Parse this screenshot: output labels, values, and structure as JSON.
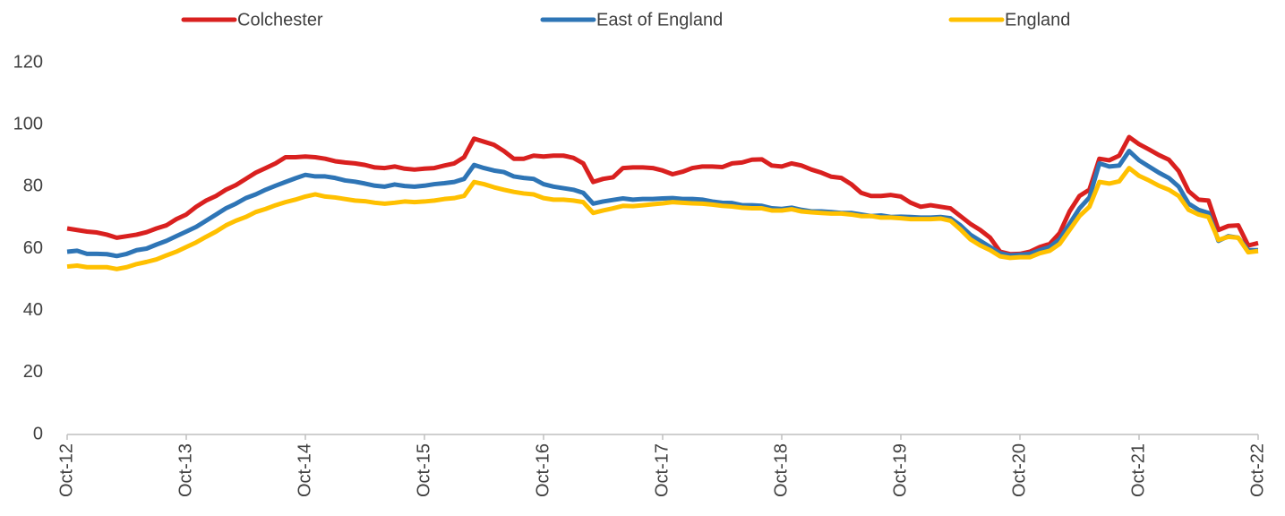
{
  "chart_data": {
    "type": "line",
    "categories": [
      "Oct-12",
      null,
      null,
      null,
      null,
      null,
      null,
      null,
      null,
      null,
      null,
      null,
      "Oct-13",
      null,
      null,
      null,
      null,
      null,
      null,
      null,
      null,
      null,
      null,
      null,
      "Oct-14",
      null,
      null,
      null,
      null,
      null,
      null,
      null,
      null,
      null,
      null,
      null,
      "Oct-15",
      null,
      null,
      null,
      null,
      null,
      null,
      null,
      null,
      null,
      null,
      null,
      "Oct-16",
      null,
      null,
      null,
      null,
      null,
      null,
      null,
      null,
      null,
      null,
      null,
      "Oct-17",
      null,
      null,
      null,
      null,
      null,
      null,
      null,
      null,
      null,
      null,
      null,
      "Oct-18",
      null,
      null,
      null,
      null,
      null,
      null,
      null,
      null,
      null,
      null,
      null,
      "Oct-19",
      null,
      null,
      null,
      null,
      null,
      null,
      null,
      null,
      null,
      null,
      null,
      "Oct-20",
      null,
      null,
      null,
      null,
      null,
      null,
      null,
      null,
      null,
      null,
      null,
      "Oct-21",
      null,
      null,
      null,
      null,
      null,
      null,
      null,
      null,
      null,
      null,
      null,
      "Oct-22"
    ],
    "series": [
      {
        "name": "Colchester",
        "color": "#d9201f",
        "values": [
          66.5,
          66,
          65.5,
          65.2,
          64.5,
          63.5,
          64,
          64.5,
          65.3,
          66.5,
          67.5,
          69.5,
          71,
          73.5,
          75.5,
          77,
          79,
          80.5,
          82.5,
          84.5,
          86,
          87.5,
          89.5,
          89.5,
          89.7,
          89.5,
          89,
          88.2,
          87.8,
          87.5,
          87,
          86.2,
          86,
          86.5,
          85.8,
          85.5,
          85.8,
          86,
          86.8,
          87.5,
          89.5,
          95.5,
          94.5,
          93.5,
          91.5,
          89,
          89,
          90,
          89.7,
          90,
          90,
          89.3,
          87.5,
          81.5,
          82.5,
          83,
          86,
          86.2,
          86.2,
          86,
          85.2,
          84,
          84.8,
          86,
          86.5,
          86.5,
          86.3,
          87.5,
          87.8,
          88.7,
          88.8,
          86.8,
          86.5,
          87.5,
          86.8,
          85.5,
          84.5,
          83.2,
          82.8,
          80.8,
          78,
          77,
          77,
          77.3,
          76.8,
          74.8,
          73.5,
          74,
          73.5,
          73,
          70.5,
          68,
          66,
          63.5,
          59,
          58.2,
          58.3,
          59,
          60.5,
          61.5,
          65,
          72,
          77,
          79,
          89,
          88.5,
          90,
          96,
          93.7,
          92,
          90.2,
          88.7,
          85,
          78.5,
          75.8,
          75.5,
          66,
          67.3,
          67.5,
          61,
          61.8
        ]
      },
      {
        "name": "East of England",
        "color": "#2e75b6",
        "values": [
          59,
          59.3,
          58.3,
          58.3,
          58.2,
          57.6,
          58.3,
          59.5,
          60,
          61.3,
          62.5,
          64,
          65.5,
          67,
          69,
          71,
          73,
          74.5,
          76.3,
          77.5,
          79,
          80.3,
          81.5,
          82.7,
          83.8,
          83.3,
          83.3,
          82.8,
          82,
          81.6,
          81,
          80.3,
          80,
          80.7,
          80.2,
          80,
          80.3,
          80.8,
          81.1,
          81.5,
          82.5,
          87,
          86,
          85.2,
          84.7,
          83.3,
          82.8,
          82.5,
          80.8,
          80,
          79.5,
          79,
          78,
          74.5,
          75.2,
          75.7,
          76.2,
          75.8,
          76,
          76,
          76.2,
          76.3,
          76,
          76,
          75.8,
          75.2,
          74.8,
          74.7,
          74,
          74,
          73.8,
          73,
          72.8,
          73.2,
          72.5,
          72,
          72,
          71.8,
          71.5,
          71.5,
          71,
          70.5,
          70.7,
          70.2,
          70.3,
          70.2,
          70,
          70,
          70.2,
          69.8,
          67.5,
          64.5,
          62.5,
          60.5,
          58.5,
          57.8,
          58,
          58.3,
          59.5,
          60.5,
          63,
          68,
          73,
          76.5,
          87.5,
          86.5,
          86.8,
          91.5,
          88.5,
          86.5,
          84.5,
          82.8,
          80,
          74.5,
          72.5,
          71.5,
          62.5,
          64,
          63.5,
          59.5,
          59.5
        ]
      },
      {
        "name": "England",
        "color": "#ffc000",
        "values": [
          54.2,
          54.5,
          54,
          54,
          54,
          53.4,
          54,
          55,
          55.7,
          56.5,
          57.8,
          59,
          60.5,
          62,
          63.8,
          65.5,
          67.5,
          69,
          70.2,
          71.8,
          72.8,
          74,
          75,
          75.8,
          76.8,
          77.5,
          76.8,
          76.5,
          76,
          75.5,
          75.3,
          74.8,
          74.5,
          74.8,
          75.2,
          75,
          75.2,
          75.5,
          76,
          76.3,
          77,
          81.5,
          80.8,
          79.8,
          79,
          78.3,
          77.8,
          77.5,
          76.3,
          75.8,
          75.8,
          75.5,
          75,
          71.5,
          72.3,
          73,
          73.8,
          73.7,
          74,
          74.3,
          74.6,
          75,
          74.8,
          74.6,
          74.5,
          74.2,
          73.8,
          73.6,
          73.2,
          73,
          73,
          72.3,
          72.3,
          72.7,
          72,
          71.7,
          71.5,
          71.3,
          71.3,
          71,
          70.5,
          70.5,
          70,
          70,
          69.8,
          69.5,
          69.5,
          69.5,
          69.7,
          69,
          66.2,
          63,
          61,
          59.5,
          57.5,
          57,
          57.2,
          57.2,
          58.5,
          59.3,
          61.5,
          66,
          70.5,
          73.5,
          81.5,
          81,
          81.7,
          86,
          83.5,
          82,
          80.3,
          79,
          77,
          72.5,
          71,
          70.2,
          62.8,
          63.8,
          63.5,
          58.8,
          59.2
        ]
      }
    ],
    "ylim": [
      0,
      120
    ],
    "yticks": [
      0,
      20,
      40,
      60,
      80,
      100,
      120
    ],
    "grid": false,
    "legend": "top"
  }
}
